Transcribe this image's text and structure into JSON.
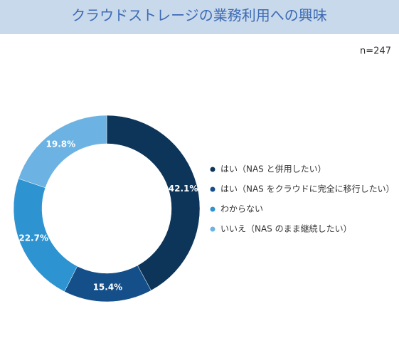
{
  "chart_data": {
    "type": "donut",
    "title": "クラウドストレージの業務利用への興味",
    "note": "n=247",
    "categories": [
      "はい（NAS と併用したい）",
      "はい（NAS をクラウドに完全に移行したい）",
      "わからない",
      "いいえ（NAS のまま継続したい）"
    ],
    "values": [
      42.1,
      15.4,
      22.7,
      19.8
    ],
    "value_labels": [
      "42.1%",
      "15.4%",
      "22.7%",
      "19.8%"
    ],
    "colors": [
      "#0d3559",
      "#154f8a",
      "#2e93d1",
      "#6cb3e3"
    ],
    "legend": "right"
  }
}
